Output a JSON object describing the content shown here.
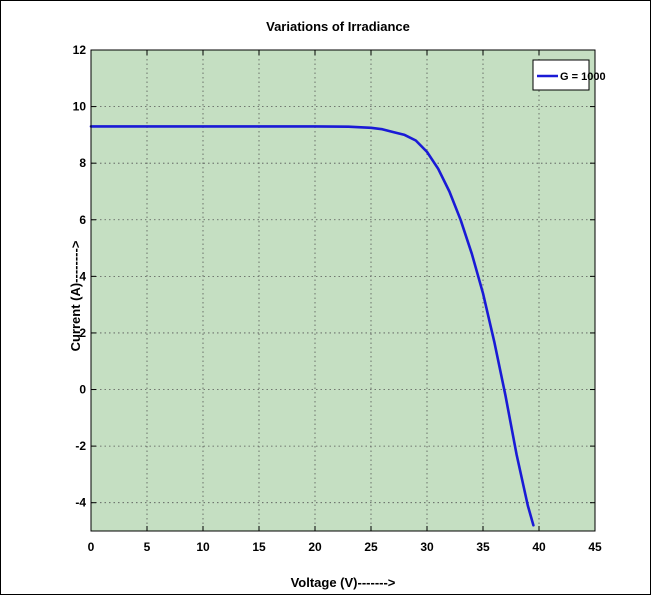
{
  "chart_data": {
    "type": "line",
    "title": "Variations of Irradiance",
    "xlabel": "Voltage (V)------->",
    "ylabel": "Current (A)-------->",
    "xlim": [
      0,
      45
    ],
    "ylim": [
      -5,
      12
    ],
    "x_ticks": [
      0,
      5,
      10,
      15,
      20,
      25,
      30,
      35,
      40,
      45
    ],
    "y_ticks": [
      -4,
      -2,
      0,
      2,
      4,
      6,
      8,
      10,
      12
    ],
    "grid": true,
    "legend_position": "top-right",
    "colors": {
      "plot_background": "#c5dfc2",
      "series": "#1a1ad6",
      "grid": "#555555"
    },
    "series": [
      {
        "name": "G = 1000",
        "x": [
          0,
          5,
          10,
          15,
          20,
          23,
          25,
          26,
          27,
          28,
          29,
          30,
          31,
          32,
          33,
          34,
          35,
          36,
          37,
          38,
          39,
          39.5
        ],
        "y": [
          9.3,
          9.3,
          9.3,
          9.3,
          9.3,
          9.29,
          9.25,
          9.2,
          9.1,
          9.0,
          8.8,
          8.4,
          7.8,
          7.0,
          6.0,
          4.8,
          3.4,
          1.7,
          -0.2,
          -2.3,
          -4.1,
          -4.8
        ]
      }
    ]
  }
}
